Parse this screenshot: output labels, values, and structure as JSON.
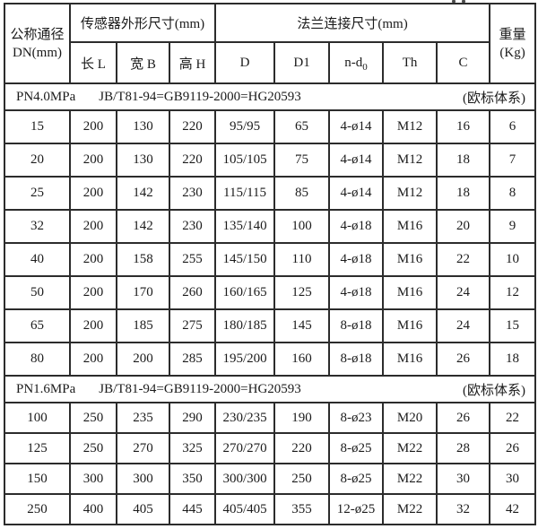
{
  "colors": {
    "background": "#ffffff",
    "border": "#2c2c2c",
    "text": "#1b1b1b"
  },
  "table": {
    "header": {
      "dn_line1": "公称通径",
      "dn_line2": "DN(mm)",
      "sensor_group": "传感器外形尺寸(mm)",
      "flange_group": "法兰连接尺寸(mm)",
      "weight_line1": "重量",
      "weight_line2": "(Kg)",
      "sub": {
        "length": "长 L",
        "width": "宽 B",
        "height": "高 H",
        "d": "D",
        "d1": "D1",
        "nd_base": "n-d",
        "nd_subscript": "0",
        "th": "Th",
        "c": "C"
      }
    }
  },
  "chart_data": {
    "type": "table",
    "column_groups": [
      {
        "label": "公称通径 DN(mm)",
        "span": 1
      },
      {
        "label": "传感器外形尺寸(mm)",
        "span": 3
      },
      {
        "label": "法兰连接尺寸(mm)",
        "span": 5
      },
      {
        "label": "重量(Kg)",
        "span": 1
      }
    ],
    "columns": [
      "公称通径 DN(mm)",
      "长 L",
      "宽 B",
      "高 H",
      "D",
      "D1",
      "n-d0",
      "Th",
      "C",
      "重量(Kg)"
    ],
    "sections": [
      {
        "pressure": "PN4.0MPa",
        "standard": "JB/T81-94=GB9119-2000=HG20593",
        "note": "(欧标体系)",
        "rows": [
          [
            "15",
            "200",
            "130",
            "220",
            "95/95",
            "65",
            "4-ø14",
            "M12",
            "16",
            "6"
          ],
          [
            "20",
            "200",
            "130",
            "220",
            "105/105",
            "75",
            "4-ø14",
            "M12",
            "18",
            "7"
          ],
          [
            "25",
            "200",
            "142",
            "230",
            "115/115",
            "85",
            "4-ø14",
            "M12",
            "18",
            "8"
          ],
          [
            "32",
            "200",
            "142",
            "230",
            "135/140",
            "100",
            "4-ø18",
            "M16",
            "20",
            "9"
          ],
          [
            "40",
            "200",
            "158",
            "255",
            "145/150",
            "110",
            "4-ø18",
            "M16",
            "22",
            "10"
          ],
          [
            "50",
            "200",
            "170",
            "260",
            "160/165",
            "125",
            "4-ø18",
            "M16",
            "24",
            "12"
          ],
          [
            "65",
            "200",
            "185",
            "275",
            "180/185",
            "145",
            "8-ø18",
            "M16",
            "24",
            "15"
          ],
          [
            "80",
            "200",
            "200",
            "285",
            "195/200",
            "160",
            "8-ø18",
            "M16",
            "26",
            "18"
          ]
        ]
      },
      {
        "pressure": "PN1.6MPa",
        "standard": "JB/T81-94=GB9119-2000=HG20593",
        "note": "(欧标体系)",
        "rows": [
          [
            "100",
            "250",
            "235",
            "290",
            "230/235",
            "190",
            "8-ø23",
            "M20",
            "26",
            "22"
          ],
          [
            "125",
            "250",
            "270",
            "325",
            "270/270",
            "220",
            "8-ø25",
            "M22",
            "28",
            "26"
          ],
          [
            "150",
            "300",
            "300",
            "350",
            "300/300",
            "250",
            "8-ø25",
            "M22",
            "30",
            "30"
          ],
          [
            "250",
            "400",
            "405",
            "445",
            "405/405",
            "355",
            "12-ø25",
            "M22",
            "32",
            "42"
          ]
        ]
      }
    ]
  }
}
